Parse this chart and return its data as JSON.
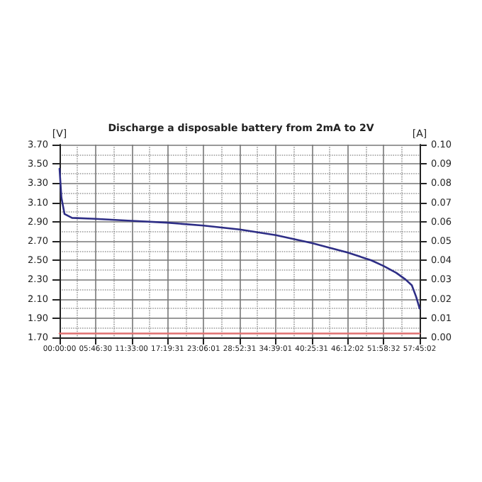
{
  "chart_data": {
    "type": "line",
    "title": "Discharge a disposable battery from 2mA to 2V",
    "ylabel": "[V]",
    "y2label": "[A]",
    "x": [
      0,
      0.3,
      0.8,
      2,
      5.8,
      11.5,
      17.3,
      23.1,
      28.9,
      34.7,
      40.4,
      46.2,
      50,
      52,
      54,
      55.5,
      56.5,
      57.2,
      57.75
    ],
    "series": [
      {
        "color": "#2e2e86",
        "values": [
          3.45,
          3.15,
          2.98,
          2.94,
          2.93,
          2.91,
          2.89,
          2.86,
          2.82,
          2.76,
          2.68,
          2.58,
          2.5,
          2.44,
          2.37,
          2.3,
          2.24,
          2.12,
          2.0
        ]
      },
      {
        "color": "#e07070",
        "axis": "y2",
        "x": [
          0,
          57.75
        ],
        "values": [
          0.002,
          0.002
        ]
      }
    ],
    "xlim": [
      0,
      57.7506
    ],
    "xticks": [
      {
        "value": 0,
        "label": "00:00:00"
      },
      {
        "value": 5.775,
        "label": "05:46:30"
      },
      {
        "value": 11.55,
        "label": "11:33:00"
      },
      {
        "value": 17.3253,
        "label": "17:19:31"
      },
      {
        "value": 23.1003,
        "label": "23:06:01"
      },
      {
        "value": 28.8753,
        "label": "28:52:31"
      },
      {
        "value": 34.6503,
        "label": "34:39:01"
      },
      {
        "value": 40.4253,
        "label": "40:25:31"
      },
      {
        "value": 46.2006,
        "label": "46:12:02"
      },
      {
        "value": 51.9756,
        "label": "51:58:32"
      },
      {
        "value": 57.7506,
        "label": "57:45:02"
      }
    ],
    "ylim": [
      1.7,
      3.7
    ],
    "yticks": [
      {
        "value": 1.7,
        "label": "1.70"
      },
      {
        "value": 1.9,
        "label": "1.90"
      },
      {
        "value": 2.1,
        "label": "2.10"
      },
      {
        "value": 2.3,
        "label": "2.30"
      },
      {
        "value": 2.5,
        "label": "2.50"
      },
      {
        "value": 2.7,
        "label": "2.70"
      },
      {
        "value": 2.9,
        "label": "2.90"
      },
      {
        "value": 3.1,
        "label": "3.10"
      },
      {
        "value": 3.3,
        "label": "3.30"
      },
      {
        "value": 3.5,
        "label": "3.50"
      },
      {
        "value": 3.7,
        "label": "3.70"
      }
    ],
    "y2lim": [
      0,
      0.1
    ],
    "y2ticks": [
      {
        "value": 0,
        "label": "0.00"
      },
      {
        "value": 0.01,
        "label": "0.01"
      },
      {
        "value": 0.02,
        "label": "0.02"
      },
      {
        "value": 0.03,
        "label": "0.03"
      },
      {
        "value": 0.04,
        "label": "0.04"
      },
      {
        "value": 0.05,
        "label": "0.05"
      },
      {
        "value": 0.06,
        "label": "0.06"
      },
      {
        "value": 0.07,
        "label": "0.07"
      },
      {
        "value": 0.08,
        "label": "0.08"
      },
      {
        "value": 0.09,
        "label": "0.09"
      },
      {
        "value": 0.1,
        "label": "0.10"
      }
    ],
    "grid": true,
    "marker": "none",
    "line_style": "solid"
  }
}
